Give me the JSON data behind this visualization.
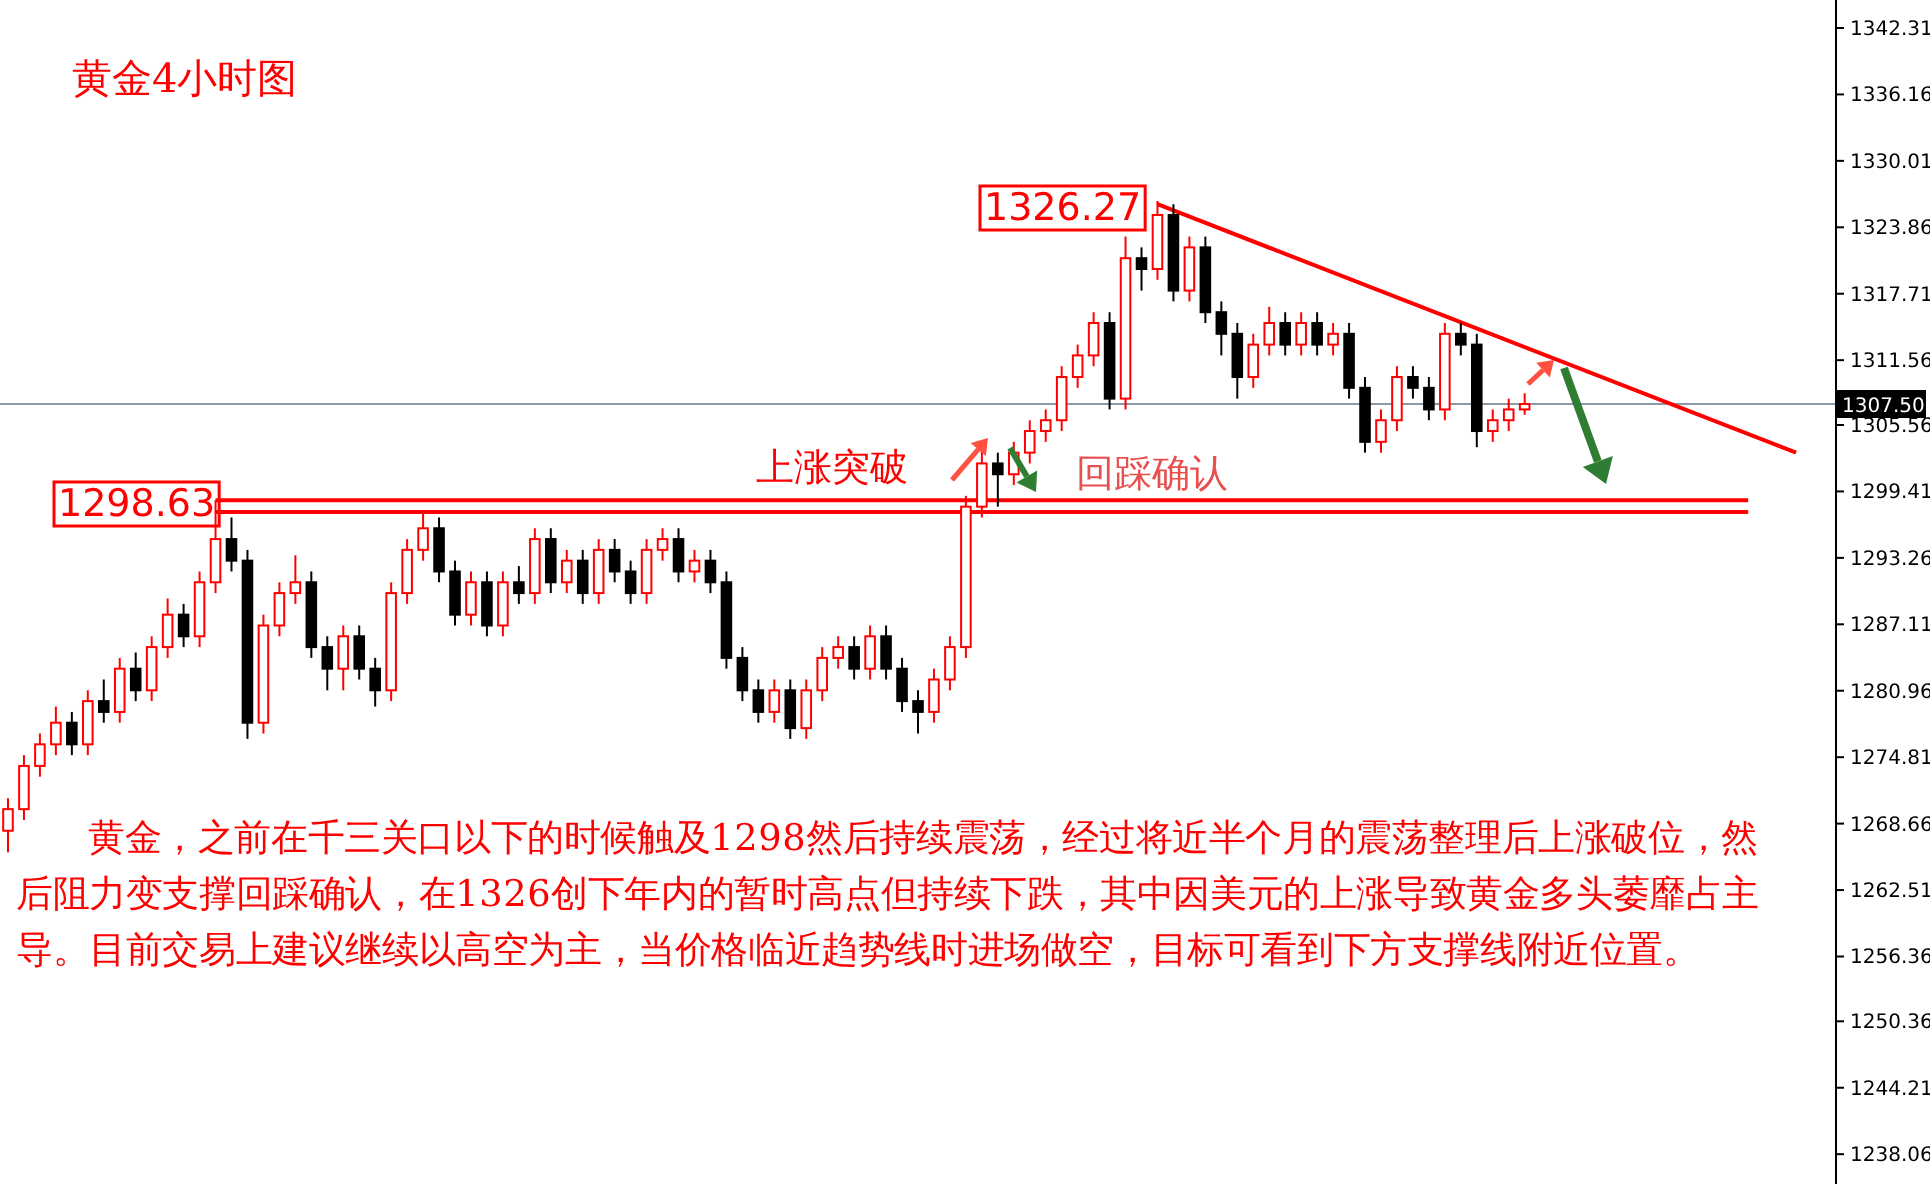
{
  "chart_data": {
    "type": "candlestick",
    "title": "黄金4小时图",
    "categories": [
      null,
      null,
      null,
      null,
      null,
      null,
      null,
      null,
      null,
      null,
      null,
      null,
      null,
      null,
      null,
      null,
      null,
      null,
      null,
      null,
      null,
      null,
      null,
      null,
      null,
      null,
      null,
      null,
      null,
      null,
      null,
      null,
      null,
      null,
      null,
      null,
      null,
      null,
      null,
      null,
      null,
      null,
      null,
      null,
      null,
      null,
      null,
      null,
      null,
      null,
      null,
      null,
      null,
      null,
      null,
      null,
      null,
      null,
      null,
      null,
      null,
      null,
      null,
      null,
      null,
      null,
      null,
      null,
      null,
      null,
      null,
      null,
      null,
      null,
      null,
      null,
      null,
      null,
      null,
      null,
      null,
      null,
      null,
      null,
      null,
      null,
      null,
      null,
      null,
      null,
      null,
      null,
      null,
      null,
      null,
      null,
      null,
      null,
      null,
      null,
      null,
      null,
      null,
      null,
      null,
      null,
      null,
      null,
      null,
      null,
      null,
      null,
      null,
      null,
      null
    ],
    "ohlc": [
      [
        1268,
        1271,
        1266,
        1270
      ],
      [
        1270,
        1275,
        1269,
        1274
      ],
      [
        1274,
        1277,
        1273,
        1276
      ],
      [
        1276,
        1279.5,
        1275,
        1278
      ],
      [
        1278,
        1279,
        1275,
        1276
      ],
      [
        1276,
        1281,
        1275,
        1280
      ],
      [
        1280,
        1282,
        1278,
        1279
      ],
      [
        1279,
        1284,
        1278,
        1283
      ],
      [
        1283,
        1284.5,
        1280,
        1281
      ],
      [
        1281,
        1286,
        1280,
        1285
      ],
      [
        1285,
        1289.5,
        1284,
        1288
      ],
      [
        1288,
        1289,
        1285,
        1286
      ],
      [
        1286,
        1292,
        1285,
        1291
      ],
      [
        1291,
        1298.6,
        1290,
        1295
      ],
      [
        1295,
        1297,
        1292,
        1293
      ],
      [
        1293,
        1294,
        1276.5,
        1278
      ],
      [
        1278,
        1288,
        1277,
        1287
      ],
      [
        1287,
        1291,
        1286,
        1290
      ],
      [
        1290,
        1293.5,
        1289,
        1291
      ],
      [
        1291,
        1292,
        1284,
        1285
      ],
      [
        1285,
        1286,
        1281,
        1283
      ],
      [
        1283,
        1287,
        1281,
        1286
      ],
      [
        1286,
        1287,
        1282,
        1283
      ],
      [
        1283,
        1284,
        1279.5,
        1281
      ],
      [
        1281,
        1291,
        1280,
        1290
      ],
      [
        1290,
        1295,
        1289,
        1294
      ],
      [
        1294,
        1297.5,
        1293,
        1296
      ],
      [
        1296,
        1297,
        1291,
        1292
      ],
      [
        1292,
        1293,
        1287,
        1288
      ],
      [
        1288,
        1292,
        1287,
        1291
      ],
      [
        1291,
        1292,
        1286,
        1287
      ],
      [
        1287,
        1292,
        1286,
        1291
      ],
      [
        1291,
        1292.5,
        1289,
        1290
      ],
      [
        1290,
        1296,
        1289,
        1295
      ],
      [
        1295,
        1296,
        1290,
        1291
      ],
      [
        1291,
        1294,
        1290,
        1293
      ],
      [
        1293,
        1294,
        1289,
        1290
      ],
      [
        1290,
        1295,
        1289,
        1294
      ],
      [
        1294,
        1295,
        1291,
        1292
      ],
      [
        1292,
        1293,
        1289,
        1290
      ],
      [
        1290,
        1295,
        1289,
        1294
      ],
      [
        1294,
        1296,
        1293,
        1295
      ],
      [
        1295,
        1296,
        1291,
        1292
      ],
      [
        1292,
        1294,
        1291,
        1293
      ],
      [
        1293,
        1294,
        1290,
        1291
      ],
      [
        1291,
        1292,
        1283,
        1284
      ],
      [
        1284,
        1285,
        1280,
        1281
      ],
      [
        1281,
        1282,
        1278,
        1279
      ],
      [
        1279,
        1282,
        1278,
        1281
      ],
      [
        1281,
        1282,
        1276.5,
        1277.5
      ],
      [
        1277.5,
        1282,
        1276.5,
        1281
      ],
      [
        1281,
        1285,
        1280,
        1284
      ],
      [
        1284,
        1286,
        1283,
        1285
      ],
      [
        1285,
        1286,
        1282,
        1283
      ],
      [
        1283,
        1287,
        1282,
        1286
      ],
      [
        1286,
        1287,
        1282,
        1283
      ],
      [
        1283,
        1284,
        1279,
        1280
      ],
      [
        1280,
        1281,
        1277,
        1279
      ],
      [
        1279,
        1283,
        1278,
        1282
      ],
      [
        1282,
        1286,
        1281,
        1285
      ],
      [
        1285,
        1299,
        1284,
        1298
      ],
      [
        1298,
        1304,
        1297,
        1302
      ],
      [
        1302,
        1303,
        1298,
        1301
      ],
      [
        1301,
        1304,
        1300,
        1303
      ],
      [
        1303,
        1306,
        1302,
        1305
      ],
      [
        1305,
        1307,
        1304,
        1306
      ],
      [
        1306,
        1311,
        1305,
        1310
      ],
      [
        1310,
        1313,
        1309,
        1312
      ],
      [
        1312,
        1316,
        1311,
        1315
      ],
      [
        1315,
        1316,
        1307,
        1308
      ],
      [
        1308,
        1323,
        1307,
        1321
      ],
      [
        1321,
        1322,
        1318,
        1320
      ],
      [
        1320,
        1326.3,
        1319,
        1325
      ],
      [
        1325,
        1326,
        1317,
        1318
      ],
      [
        1318,
        1323,
        1317,
        1322
      ],
      [
        1322,
        1323,
        1315,
        1316
      ],
      [
        1316,
        1317,
        1312,
        1314
      ],
      [
        1314,
        1315,
        1308,
        1310
      ],
      [
        1310,
        1314,
        1309,
        1313
      ],
      [
        1313,
        1316.5,
        1312,
        1315
      ],
      [
        1315,
        1316,
        1312,
        1313
      ],
      [
        1313,
        1316,
        1312,
        1315
      ],
      [
        1315,
        1316,
        1312,
        1313
      ],
      [
        1313,
        1315,
        1312,
        1314
      ],
      [
        1314,
        1315,
        1308,
        1309
      ],
      [
        1309,
        1310,
        1303,
        1304
      ],
      [
        1304,
        1307,
        1303,
        1306
      ],
      [
        1306,
        1311,
        1305,
        1310
      ],
      [
        1310,
        1311,
        1308,
        1309
      ],
      [
        1309,
        1310,
        1306,
        1307
      ],
      [
        1307,
        1315,
        1306,
        1314
      ],
      [
        1314,
        1315,
        1312,
        1313
      ],
      [
        1313,
        1314,
        1303.5,
        1305
      ],
      [
        1305,
        1307,
        1304,
        1306
      ],
      [
        1306,
        1308,
        1305,
        1307
      ],
      [
        1307,
        1308.5,
        1306.5,
        1307.5
      ],
      null,
      null,
      null,
      null,
      null,
      null,
      null,
      null,
      null,
      null,
      null,
      null,
      null,
      null,
      null,
      null,
      null,
      null,
      null
    ],
    "colors": [
      "#ff0000",
      "#ff0000",
      "#ff0000",
      "#ff0000",
      "#000000",
      "#ff0000",
      "#000000",
      "#ff0000",
      "#000000",
      "#ff0000",
      "#ff0000",
      "#000000",
      "#ff0000",
      "#ff0000",
      "#000000",
      "#000000",
      "#ff0000",
      "#ff0000",
      "#ff0000",
      "#000000",
      "#000000",
      "#ff0000",
      "#000000",
      "#000000",
      "#ff0000",
      "#ff0000",
      "#ff0000",
      "#000000",
      "#000000",
      "#ff0000",
      "#000000",
      "#ff0000",
      "#000000",
      "#ff0000",
      "#000000",
      "#ff0000",
      "#000000",
      "#ff0000",
      "#000000",
      "#000000",
      "#ff0000",
      "#ff0000",
      "#000000",
      "#ff0000",
      "#000000",
      "#000000",
      "#000000",
      "#000000",
      "#ff0000",
      "#000000",
      "#ff0000",
      "#ff0000",
      "#ff0000",
      "#000000",
      "#ff0000",
      "#000000",
      "#000000",
      "#000000",
      "#ff0000",
      "#ff0000",
      "#ff0000",
      "#ff0000",
      "#000000",
      "#ff0000",
      "#ff0000",
      "#ff0000",
      "#ff0000",
      "#ff0000",
      "#ff0000",
      "#000000",
      "#ff0000",
      "#000000",
      "#ff0000",
      "#000000",
      "#ff0000",
      "#000000",
      "#000000",
      "#000000",
      "#ff0000",
      "#ff0000",
      "#000000",
      "#ff0000",
      "#000000",
      "#ff0000",
      "#000000",
      "#000000",
      "#ff0000",
      "#ff0000",
      "#000000",
      "#000000",
      "#ff0000",
      "#000000",
      "#000000",
      "#ff0000",
      "#ff0000",
      "#ff0000",
      null,
      null,
      null,
      null,
      null,
      null,
      null,
      null,
      null,
      null,
      null,
      null,
      null,
      null,
      null,
      null,
      null,
      null,
      null
    ],
    "series": [
      {
        "type": "line",
        "color": "#ff0000",
        "values": [
          null,
          null,
          null,
          null,
          null,
          null,
          null,
          null,
          null,
          null,
          null,
          null,
          null,
          null,
          null,
          null,
          null,
          null,
          null,
          null,
          null,
          null,
          null,
          null,
          null,
          null,
          null,
          null,
          null,
          null,
          null,
          null,
          null,
          null,
          null,
          null,
          null,
          null,
          null,
          null,
          null,
          null,
          null,
          null,
          null,
          null,
          null,
          null,
          null,
          null,
          null,
          null,
          null,
          null,
          null,
          null,
          null,
          null,
          null,
          null,
          null,
          null,
          null,
          null,
          null,
          null,
          null,
          null,
          null,
          null,
          null,
          null,
          1326,
          null,
          null,
          null,
          null,
          null,
          null,
          null,
          null,
          null,
          null,
          null,
          null,
          null,
          null,
          null,
          null,
          null,
          null,
          null,
          null,
          null,
          null,
          null,
          null,
          null,
          null,
          null,
          null,
          null,
          null,
          null,
          null,
          null,
          null,
          null,
          null,
          null,
          null,
          null,
          1303,
          null,
          null
        ]
      },
      {
        "type": "line",
        "color": "#ff0000",
        "values": [
          null,
          null,
          null,
          null,
          null,
          null,
          null,
          null,
          null,
          null,
          null,
          null,
          null,
          1298.6,
          1298.6,
          1298.6,
          1298.6,
          1298.6,
          1298.6,
          1298.6,
          1298.6,
          1298.6,
          1298.6,
          1298.6,
          1298.6,
          1298.6,
          1298.6,
          1298.6,
          1298.6,
          1298.6,
          1298.6,
          1298.6,
          1298.6,
          1298.6,
          1298.6,
          1298.6,
          1298.6,
          1298.6,
          1298.6,
          1298.6,
          1298.6,
          1298.6,
          1298.6,
          1298.6,
          1298.6,
          1298.6,
          1298.6,
          1298.6,
          1298.6,
          1298.6,
          1298.6,
          1298.6,
          1298.6,
          1298.6,
          1298.6,
          1298.6,
          1298.6,
          1298.6,
          1298.6,
          1298.6,
          1298.6,
          1298.6,
          1298.6,
          1298.6,
          1298.6,
          1298.6,
          1298.6,
          1298.6,
          1298.6,
          1298.6,
          1298.6,
          1298.6,
          1298.6,
          1298.6,
          1298.6,
          1298.6,
          1298.6,
          1298.6,
          1298.6,
          1298.6,
          1298.6,
          1298.6,
          1298.6,
          1298.6,
          1298.6,
          1298.6,
          1298.6,
          1298.6,
          1298.6,
          1298.6,
          1298.6,
          1298.6,
          1298.6,
          1298.6,
          1298.6,
          1298.6,
          1298.6,
          1298.6,
          1298.6,
          1298.6,
          1298.6,
          1298.6,
          1298.6,
          1298.6,
          1298.6,
          1298.6,
          1298.6,
          1298.6,
          1298.6,
          1298.6,
          null,
          null,
          null,
          null,
          null
        ]
      },
      {
        "type": "line",
        "color": "#ff0000",
        "values": [
          null,
          null,
          null,
          null,
          null,
          null,
          null,
          null,
          null,
          null,
          null,
          null,
          null,
          1297.5,
          1297.5,
          1297.5,
          1297.5,
          1297.5,
          1297.5,
          1297.5,
          1297.5,
          1297.5,
          1297.5,
          1297.5,
          1297.5,
          1297.5,
          1297.5,
          1297.5,
          1297.5,
          1297.5,
          1297.5,
          1297.5,
          1297.5,
          1297.5,
          1297.5,
          1297.5,
          1297.5,
          1297.5,
          1297.5,
          1297.5,
          1297.5,
          1297.5,
          1297.5,
          1297.5,
          1297.5,
          1297.5,
          1297.5,
          1297.5,
          1297.5,
          1297.5,
          1297.5,
          1297.5,
          1297.5,
          1297.5,
          1297.5,
          1297.5,
          1297.5,
          1297.5,
          1297.5,
          1297.5,
          1297.5,
          1297.5,
          1297.5,
          1297.5,
          1297.5,
          1297.5,
          1297.5,
          1297.5,
          1297.5,
          1297.5,
          1297.5,
          1297.5,
          1297.5,
          1297.5,
          1297.5,
          1297.5,
          1297.5,
          1297.5,
          1297.5,
          1297.5,
          1297.5,
          1297.5,
          1297.5,
          1297.5,
          1297.5,
          1297.5,
          1297.5,
          1297.5,
          1297.5,
          1297.5,
          1297.5,
          1297.5,
          1297.5,
          1297.5,
          1297.5,
          1297.5,
          1297.5,
          1297.5,
          1297.5,
          1297.5,
          1297.5,
          1297.5,
          1297.5,
          1297.5,
          1297.5,
          1297.5,
          1297.5,
          1297.5,
          1297.5,
          1297.5,
          null,
          null,
          null,
          null,
          null
        ]
      }
    ],
    "ref_lines": [
      {
        "axis": "y",
        "value": 1307.5,
        "label": "1307.50",
        "color": "#8a9aa8"
      }
    ],
    "annotations": [
      "1298.63",
      "1326.27",
      "上涨突破",
      "回踩确认",
      "黄金，之前在千三关口以下的时候触及1298然后持续震荡，经过将近半个月的震荡整理后上涨破位，然后阻力变支撑回踩确认，在1326创下年内的暂时高点但持续下跌，其中因美元的上涨导致黄金多头萎靡占主导。目前交易上建议继续以高空为主，当价格临近趋势线时进场做空，目标可看到下方支撑线附近位置。"
    ],
    "ylim": [
      1235.3,
      1344.9
    ],
    "yticks": [
      1342.31,
      1336.16,
      1330.01,
      1323.86,
      1317.71,
      1311.56,
      1305.56,
      1299.41,
      1293.26,
      1287.11,
      1280.96,
      1274.81,
      1268.66,
      1262.51,
      1256.36,
      1250.36,
      1244.21,
      1238.06
    ],
    "tick_labels": "y",
    "grid": false
  }
}
